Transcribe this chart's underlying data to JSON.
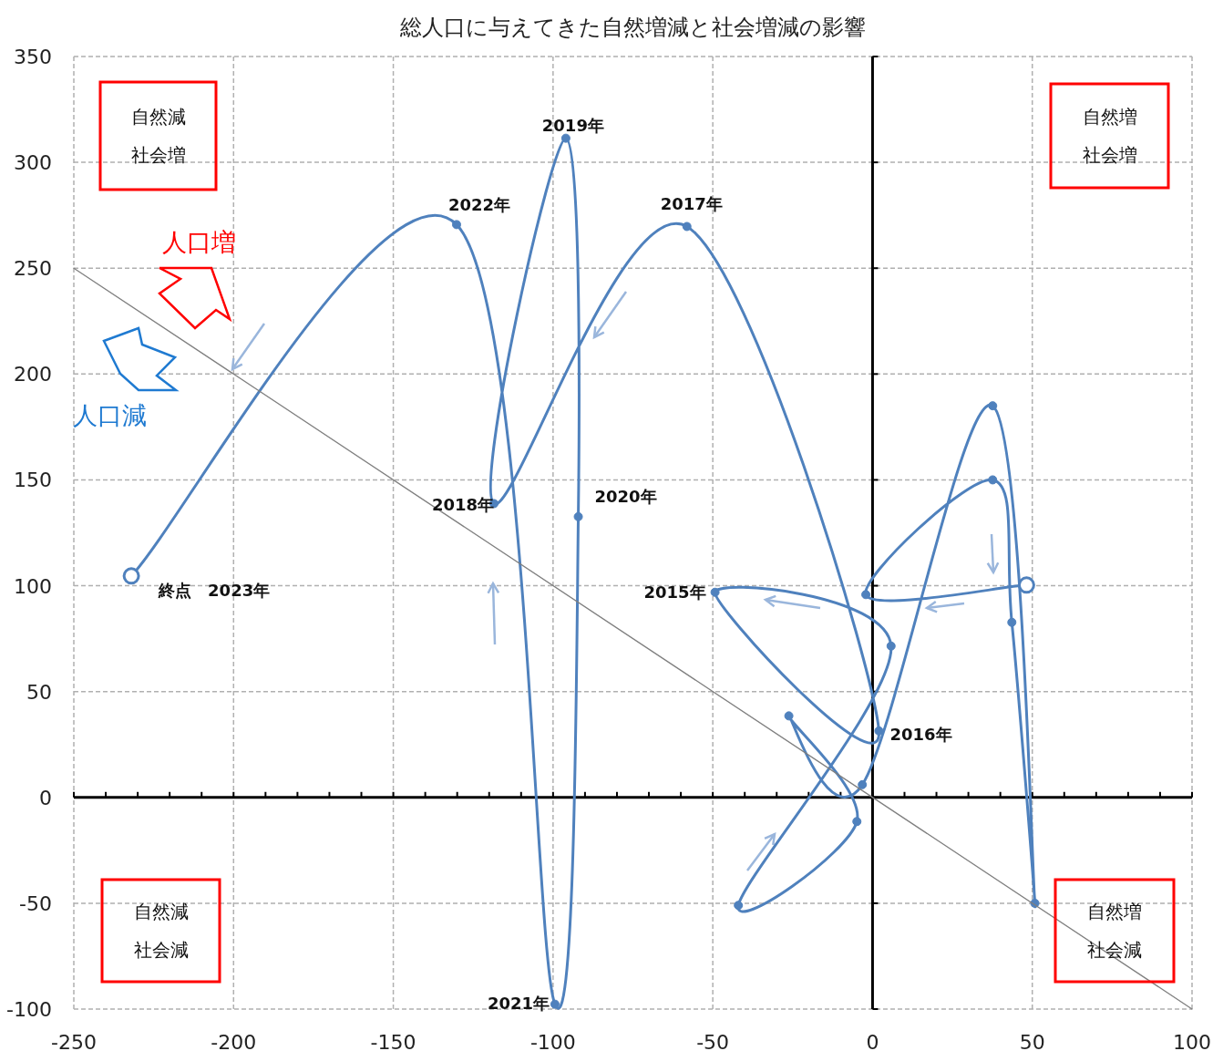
{
  "chart_data": {
    "type": "line",
    "title": "総人口に与えてきた自然増減と社会増減の影響",
    "xlim": [
      -250,
      100
    ],
    "xticks": [
      -250,
      -200,
      -150,
      -100,
      -50,
      0,
      50,
      100
    ],
    "ylim": [
      -100,
      350
    ],
    "yticks": [
      -100,
      -50,
      0,
      50,
      100,
      150,
      200,
      250,
      300,
      350
    ],
    "grid": true,
    "marker": "circle",
    "line_style": "solid",
    "series": [
      {
        "color": "#4f81bd",
        "x": [
          48.2,
          -2.1,
          37.6,
          43.6,
          50.8,
          37.6,
          -3.2,
          -26.2,
          -4.9,
          -42,
          5.8,
          -49.3,
          2.0,
          -58.1,
          -118.5,
          -96,
          -92.1,
          -99.4,
          -130.2,
          -232
        ],
        "values": [
          100.3,
          95.8,
          150,
          82.7,
          -50,
          185,
          6,
          38.5,
          -11.4,
          -51,
          71.5,
          96.9,
          31.4,
          269.7,
          138.8,
          311.4,
          132.6,
          -97.7,
          270.6,
          104.6
        ]
      },
      {
        "color": "#7f7f7f",
        "marker": "none",
        "x": [
          -250,
          100
        ],
        "values": [
          250,
          -100
        ]
      }
    ],
    "annotations": [
      {
        "text": "2015年",
        "x": -49.3,
        "y": 96.9
      },
      {
        "text": "2016年",
        "x": 2.0,
        "y": 31.4
      },
      {
        "text": "2017年",
        "x": -58.1,
        "y": 269.7
      },
      {
        "text": "2018年",
        "x": -118.5,
        "y": 138.8
      },
      {
        "text": "2019年",
        "x": -96,
        "y": 311.4
      },
      {
        "text": "2020年",
        "x": -92.1,
        "y": 132.6
      },
      {
        "text": "2021年",
        "x": -99.4,
        "y": -97.7
      },
      {
        "text": "2022年",
        "x": -130.2,
        "y": 270.6
      },
      {
        "text": "終点　2023年",
        "x": -232,
        "y": 104.6
      },
      "自然減",
      "社会増",
      "自然増",
      "社会増",
      "自然減",
      "社会減",
      "自然増",
      "社会減",
      "人口増",
      "人口減"
    ]
  }
}
